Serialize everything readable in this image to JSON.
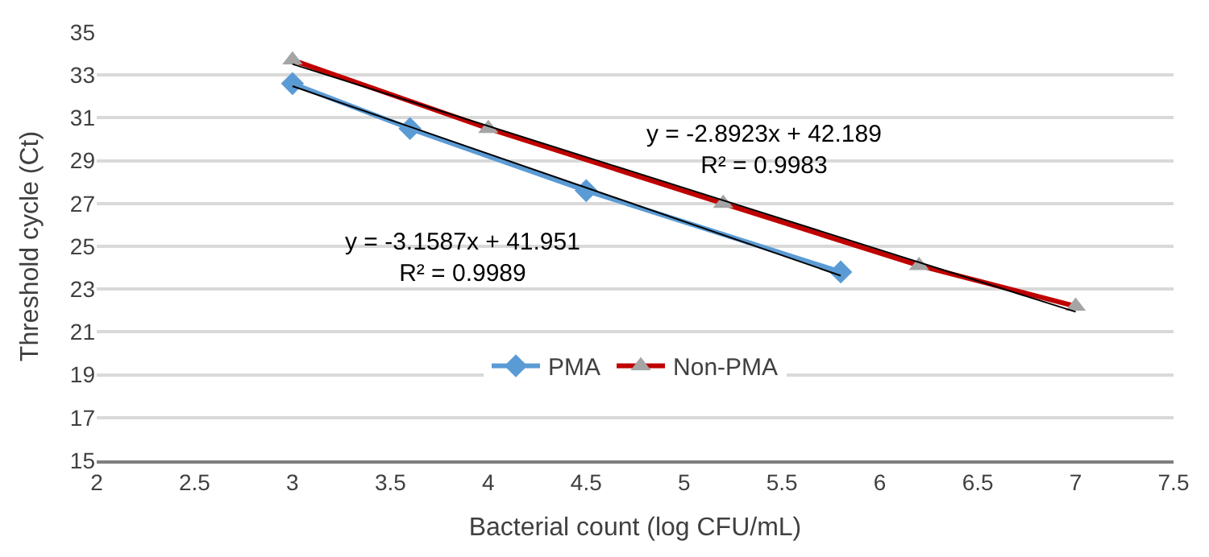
{
  "chart_data": {
    "type": "line",
    "xlabel": "Bacterial count (log CFU/mL)",
    "ylabel": "Threshold cycle (Ct)",
    "xlim": [
      2,
      7.5
    ],
    "xticks": [
      2,
      2.5,
      3,
      3.5,
      4,
      4.5,
      5,
      5.5,
      6,
      6.5,
      7,
      7.5
    ],
    "ylim": [
      15,
      35
    ],
    "yticks": [
      15,
      17,
      19,
      21,
      23,
      25,
      27,
      29,
      31,
      33,
      35
    ],
    "grid": "y",
    "legend": "bottom",
    "series": [
      {
        "name": "PMA",
        "color": "#5b9bd5",
        "marker": "diamond",
        "x": [
          3,
          3.6,
          4.5,
          5.8
        ],
        "values": [
          32.6,
          30.5,
          27.6,
          23.8
        ]
      },
      {
        "name": "Non-PMA",
        "color": "#c00000",
        "colors": [
          "#a5a5a5",
          "#a5a5a5",
          "#a5a5a5",
          "#a5a5a5",
          "#a5a5a5"
        ],
        "marker": "triangle",
        "x": [
          3,
          4,
          5.2,
          6.2,
          7
        ],
        "values": [
          33.7,
          30.5,
          27.0,
          24.1,
          22.2
        ]
      },
      {
        "type": "line",
        "color": "#000000",
        "marker": "none",
        "x": [
          3,
          5.8
        ],
        "values": [
          32.48,
          23.63
        ]
      },
      {
        "type": "line",
        "color": "#000000",
        "marker": "none",
        "x": [
          3,
          7
        ],
        "values": [
          33.51,
          21.94
        ]
      }
    ],
    "annotations": [
      "y = -3.1587x + 41.951\nR² = 0.9989",
      "y = -2.8923x + 42.189\nR² = 0.9983"
    ]
  }
}
